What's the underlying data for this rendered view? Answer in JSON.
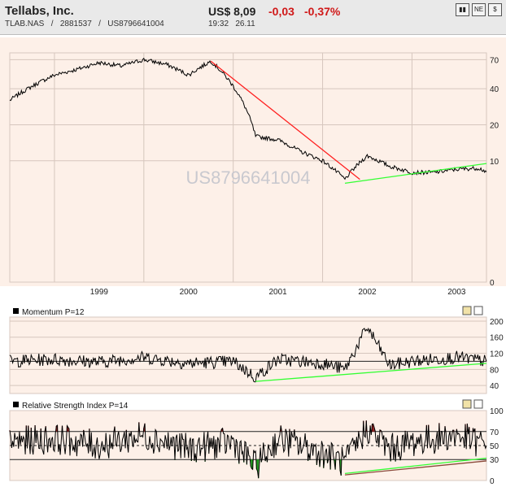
{
  "header": {
    "company": "Tellabs, Inc.",
    "ticker": "TLAB.NAS",
    "separator1": "/",
    "code": "2881537",
    "separator2": "/",
    "isin": "US8796641004",
    "price": "US$ 8,09",
    "change": "-0,03",
    "change_pct": "-0,37%",
    "time": "19:32",
    "date": "26.11",
    "buttons": [
      {
        "name": "chart-icon",
        "glyph": "▮▮"
      },
      {
        "name": "news-icon",
        "glyph": "NE"
      },
      {
        "name": "dollar-icon",
        "glyph": "$"
      }
    ]
  },
  "colors": {
    "background": "#fdf0e8",
    "price_line": "#000000",
    "resistance_trend": "#ff2020",
    "support_trend": "#33ff33",
    "rsi_oversold_fill": "#1a9a1a",
    "rsi_overbought_fill": "#8a1010"
  },
  "chart_data": [
    {
      "type": "line",
      "panel": "price",
      "watermark": "US8796641004",
      "x_tick_labels": [
        "1999",
        "2000",
        "2001",
        "2002",
        "2003"
      ],
      "y_tick_labels": [
        "70",
        "40",
        "20",
        "10",
        "0"
      ],
      "y_scale": "log",
      "series": [
        {
          "values_note": "",
          "x": [
            "1998-07",
            "1998-10",
            "1999-01",
            "1999-04",
            "1999-07",
            "1999-10",
            "2000-01",
            "2000-04",
            "2000-07",
            "2000-10",
            "2001-01",
            "2001-04",
            "2001-07",
            "2001-10",
            "2002-01",
            "2002-04",
            "2002-07",
            "2002-10",
            "2003-01",
            "2003-04",
            "2003-07",
            "2003-10",
            "2003-11"
          ],
          "values": [
            32,
            42,
            52,
            58,
            66,
            62,
            70,
            64,
            52,
            68,
            42,
            16,
            15,
            12,
            10,
            7,
            11,
            9,
            8,
            8,
            8.5,
            8.7,
            8.09
          ]
        }
      ],
      "trendlines": [
        {
          "from": [
            "2000-10",
            68
          ],
          "to": [
            "2002-06",
            7
          ]
        },
        {
          "from": [
            "2002-04",
            6.5
          ],
          "to": [
            "2003-11",
            9.5
          ]
        }
      ],
      "grid": true
    },
    {
      "type": "line",
      "panel": "momentum",
      "label": "Momentum P=12",
      "y_tick_labels": [
        "200",
        "160",
        "120",
        "80",
        "40"
      ],
      "ylim": [
        20,
        210
      ],
      "reference_line": 100,
      "series": [
        {
          "x": [
            "1998-07",
            "1999-01",
            "1999-07",
            "2000-01",
            "2000-07",
            "2001-01",
            "2001-04",
            "2001-07",
            "2002-01",
            "2002-04",
            "2002-07",
            "2002-10",
            "2003-01",
            "2003-07",
            "2003-11"
          ],
          "values": [
            100,
            105,
            98,
            110,
            95,
            100,
            60,
            105,
            95,
            80,
            185,
            90,
            100,
            110,
            100
          ]
        }
      ],
      "trendlines": [
        {
          "from": [
            "2001-04",
            50
          ],
          "to": [
            "2003-11",
            95
          ]
        }
      ]
    },
    {
      "type": "line",
      "panel": "rsi",
      "label": "Relative Strength Index P=14",
      "y_tick_labels": [
        "100",
        "70",
        "50",
        "30",
        "0"
      ],
      "ylim": [
        0,
        100
      ],
      "reference_lines": [
        70,
        50,
        30
      ],
      "series": [
        {
          "x": [
            "1998-07",
            "1999-01",
            "1999-07",
            "2000-01",
            "2000-07",
            "2001-01",
            "2001-04",
            "2001-07",
            "2002-01",
            "2002-04",
            "2002-07",
            "2002-10",
            "2003-01",
            "2003-07",
            "2003-11"
          ],
          "values": [
            55,
            60,
            50,
            65,
            45,
            55,
            20,
            60,
            40,
            25,
            75,
            45,
            55,
            65,
            50
          ]
        }
      ],
      "trendlines": [
        {
          "from": [
            "2002-04",
            8
          ],
          "to": [
            "2003-11",
            28
          ]
        },
        {
          "from": [
            "2002-04",
            10
          ],
          "to": [
            "2003-11",
            32
          ]
        }
      ]
    }
  ]
}
